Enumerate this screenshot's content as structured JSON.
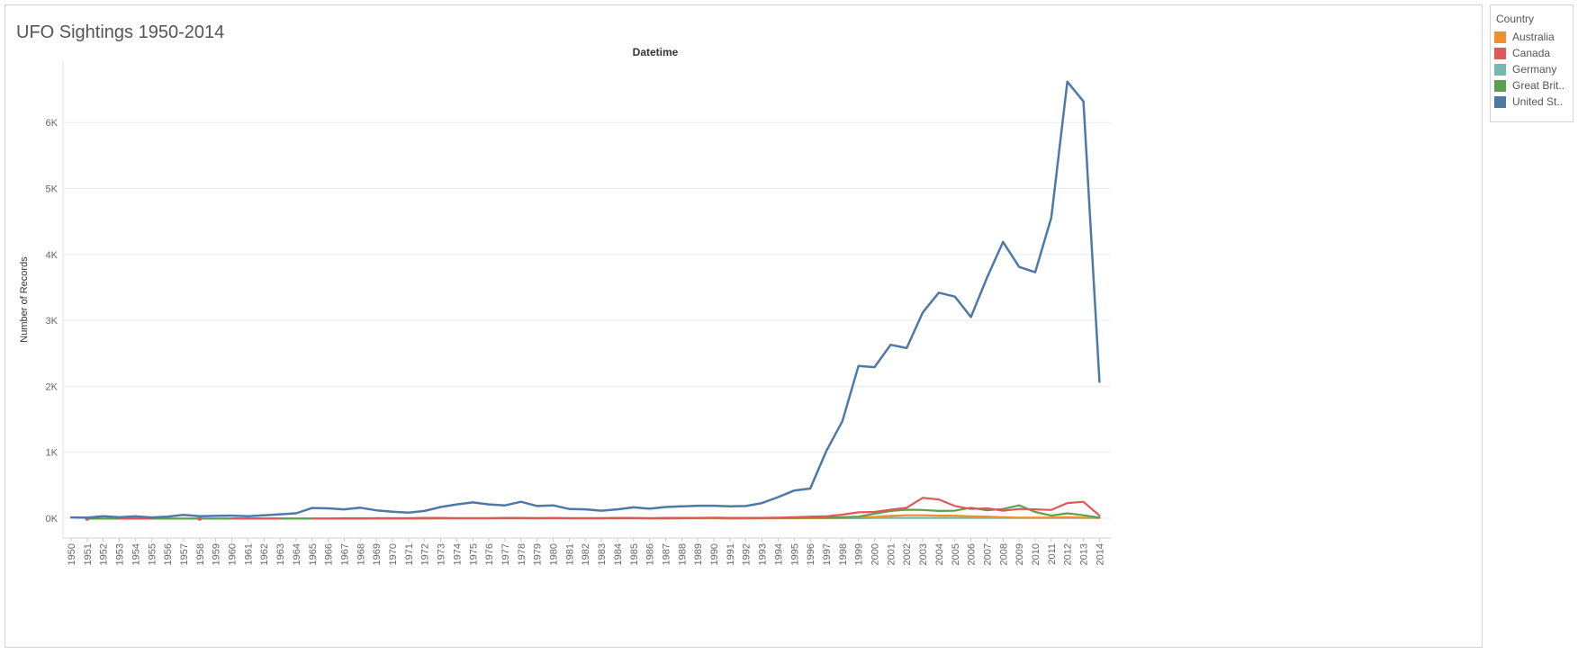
{
  "dashboard": {
    "title": "UFO Sightings 1950-2014"
  },
  "legend": {
    "title": "Country",
    "items": [
      {
        "label": "Australia",
        "color": "#f28e2b"
      },
      {
        "label": "Canada",
        "color": "#e15759"
      },
      {
        "label": "Germany",
        "color": "#76b7b2"
      },
      {
        "label": "Great Brit..",
        "color": "#59a14f"
      },
      {
        "label": "United St..",
        "color": "#4e79a7"
      }
    ]
  },
  "chart_data": {
    "type": "line",
    "title": "Datetime",
    "xlabel": "",
    "ylabel": "Number of Records",
    "ylim": [
      -300,
      7000
    ],
    "y_ticks": [
      {
        "value": 0,
        "label": "0K"
      },
      {
        "value": 1000,
        "label": "1K"
      },
      {
        "value": 2000,
        "label": "2K"
      },
      {
        "value": 3000,
        "label": "3K"
      },
      {
        "value": 4000,
        "label": "4K"
      },
      {
        "value": 5000,
        "label": "5K"
      },
      {
        "value": 6000,
        "label": "6K"
      }
    ],
    "grid": true,
    "legend_position": "right",
    "x": [
      1950,
      1951,
      1952,
      1953,
      1954,
      1955,
      1956,
      1957,
      1958,
      1959,
      1960,
      1961,
      1962,
      1963,
      1964,
      1965,
      1966,
      1967,
      1968,
      1969,
      1970,
      1971,
      1972,
      1973,
      1974,
      1975,
      1976,
      1977,
      1978,
      1979,
      1980,
      1981,
      1982,
      1983,
      1984,
      1985,
      1986,
      1987,
      1988,
      1989,
      1990,
      1991,
      1992,
      1993,
      1994,
      1995,
      1996,
      1997,
      1998,
      1999,
      2000,
      2001,
      2002,
      2003,
      2004,
      2005,
      2006,
      2007,
      2008,
      2009,
      2010,
      2011,
      2012,
      2013,
      2014
    ],
    "series": [
      {
        "name": "United St..",
        "color": "#4e79a7",
        "points": [
          [
            1950,
            12
          ],
          [
            1951,
            8
          ],
          [
            1952,
            30
          ],
          [
            1953,
            15
          ],
          [
            1954,
            28
          ],
          [
            1955,
            12
          ],
          [
            1956,
            25
          ],
          [
            1957,
            50
          ],
          [
            1958,
            30
          ],
          [
            1959,
            35
          ],
          [
            1960,
            40
          ],
          [
            1961,
            30
          ],
          [
            1962,
            45
          ],
          [
            1963,
            60
          ],
          [
            1964,
            75
          ],
          [
            1965,
            155
          ],
          [
            1966,
            150
          ],
          [
            1967,
            135
          ],
          [
            1968,
            160
          ],
          [
            1969,
            120
          ],
          [
            1970,
            100
          ],
          [
            1971,
            85
          ],
          [
            1972,
            110
          ],
          [
            1973,
            170
          ],
          [
            1974,
            210
          ],
          [
            1975,
            240
          ],
          [
            1976,
            210
          ],
          [
            1977,
            195
          ],
          [
            1978,
            250
          ],
          [
            1979,
            185
          ],
          [
            1980,
            195
          ],
          [
            1981,
            140
          ],
          [
            1982,
            135
          ],
          [
            1983,
            115
          ],
          [
            1984,
            135
          ],
          [
            1985,
            165
          ],
          [
            1986,
            145
          ],
          [
            1987,
            170
          ],
          [
            1988,
            180
          ],
          [
            1989,
            190
          ],
          [
            1990,
            190
          ],
          [
            1991,
            180
          ],
          [
            1992,
            185
          ],
          [
            1993,
            230
          ],
          [
            1994,
            320
          ],
          [
            1995,
            420
          ],
          [
            1996,
            450
          ],
          [
            1997,
            1020
          ],
          [
            1998,
            1470
          ],
          [
            1999,
            2310
          ],
          [
            2000,
            2290
          ],
          [
            2001,
            2630
          ],
          [
            2002,
            2580
          ],
          [
            2003,
            3120
          ],
          [
            2004,
            3420
          ],
          [
            2005,
            3360
          ],
          [
            2006,
            3050
          ],
          [
            2007,
            3650
          ],
          [
            2008,
            4190
          ],
          [
            2009,
            3810
          ],
          [
            2010,
            3730
          ],
          [
            2011,
            4560
          ],
          [
            2012,
            6620
          ],
          [
            2013,
            6320
          ],
          [
            2014,
            2070
          ]
        ]
      },
      {
        "name": "Canada",
        "color": "#e15759",
        "points": [
          [
            1951,
            -5
          ],
          [
            1953,
            -5
          ],
          [
            1954,
            -5
          ],
          [
            1955,
            -5
          ],
          [
            1958,
            -5
          ],
          [
            1960,
            -5
          ],
          [
            1961,
            -5
          ],
          [
            1962,
            -5
          ],
          [
            1963,
            -5
          ],
          [
            1965,
            -5
          ],
          [
            1966,
            -5
          ],
          [
            1967,
            -5
          ],
          [
            1968,
            -5
          ],
          [
            1969,
            0
          ],
          [
            1970,
            0
          ],
          [
            1971,
            0
          ],
          [
            1972,
            5
          ],
          [
            1973,
            5
          ],
          [
            1974,
            0
          ],
          [
            1975,
            0
          ],
          [
            1976,
            0
          ],
          [
            1977,
            5
          ],
          [
            1978,
            5
          ],
          [
            1979,
            0
          ],
          [
            1980,
            5
          ],
          [
            1981,
            0
          ],
          [
            1982,
            0
          ],
          [
            1983,
            0
          ],
          [
            1984,
            5
          ],
          [
            1985,
            5
          ],
          [
            1986,
            0
          ],
          [
            1987,
            5
          ],
          [
            1988,
            5
          ],
          [
            1989,
            5
          ],
          [
            1990,
            10
          ],
          [
            1991,
            5
          ],
          [
            1992,
            5
          ],
          [
            1993,
            5
          ],
          [
            1994,
            10
          ],
          [
            1995,
            15
          ],
          [
            1996,
            25
          ],
          [
            1997,
            30
          ],
          [
            1998,
            55
          ],
          [
            1999,
            90
          ],
          [
            2000,
            95
          ],
          [
            2001,
            130
          ],
          [
            2002,
            160
          ],
          [
            2003,
            310
          ],
          [
            2004,
            285
          ],
          [
            2005,
            185
          ],
          [
            2006,
            140
          ],
          [
            2007,
            150
          ],
          [
            2008,
            115
          ],
          [
            2009,
            140
          ],
          [
            2010,
            135
          ],
          [
            2011,
            125
          ],
          [
            2012,
            230
          ],
          [
            2013,
            250
          ],
          [
            2014,
            40
          ]
        ]
      },
      {
        "name": "Great Brit..",
        "color": "#59a14f",
        "points": [
          [
            1951,
            -5
          ],
          [
            1952,
            -5
          ],
          [
            1960,
            -5
          ],
          [
            1966,
            -5
          ],
          [
            1967,
            0
          ],
          [
            1968,
            0
          ],
          [
            1970,
            0
          ],
          [
            1974,
            0
          ],
          [
            1976,
            0
          ],
          [
            1980,
            0
          ],
          [
            1984,
            0
          ],
          [
            1988,
            0
          ],
          [
            1990,
            5
          ],
          [
            1992,
            5
          ],
          [
            1994,
            5
          ],
          [
            1996,
            10
          ],
          [
            1997,
            10
          ],
          [
            1998,
            15
          ],
          [
            1999,
            25
          ],
          [
            2000,
            70
          ],
          [
            2001,
            110
          ],
          [
            2002,
            130
          ],
          [
            2003,
            125
          ],
          [
            2004,
            110
          ],
          [
            2005,
            115
          ],
          [
            2006,
            160
          ],
          [
            2007,
            120
          ],
          [
            2008,
            140
          ],
          [
            2009,
            195
          ],
          [
            2010,
            95
          ],
          [
            2011,
            40
          ],
          [
            2012,
            75
          ],
          [
            2013,
            45
          ],
          [
            2014,
            10
          ]
        ]
      },
      {
        "name": "Australia",
        "color": "#f28e2b",
        "points": [
          [
            1960,
            -5
          ],
          [
            1962,
            -5
          ],
          [
            1968,
            -5
          ],
          [
            1970,
            -5
          ],
          [
            1972,
            -5
          ],
          [
            1974,
            0
          ],
          [
            1977,
            0
          ],
          [
            1980,
            0
          ],
          [
            1983,
            0
          ],
          [
            1985,
            0
          ],
          [
            1987,
            -5
          ],
          [
            1988,
            0
          ],
          [
            1990,
            0
          ],
          [
            1991,
            -5
          ],
          [
            1993,
            0
          ],
          [
            1995,
            0
          ],
          [
            1997,
            5
          ],
          [
            1998,
            10
          ],
          [
            1999,
            15
          ],
          [
            2000,
            20
          ],
          [
            2001,
            35
          ],
          [
            2002,
            45
          ],
          [
            2003,
            45
          ],
          [
            2004,
            40
          ],
          [
            2005,
            40
          ],
          [
            2006,
            30
          ],
          [
            2007,
            25
          ],
          [
            2008,
            15
          ],
          [
            2009,
            10
          ],
          [
            2010,
            10
          ],
          [
            2011,
            10
          ],
          [
            2012,
            15
          ],
          [
            2013,
            10
          ],
          [
            2014,
            5
          ]
        ]
      },
      {
        "name": "Germany",
        "color": "#76b7b2",
        "points": [
          [
            1990,
            0
          ],
          [
            1995,
            0
          ],
          [
            1999,
            0
          ],
          [
            2000,
            5
          ],
          [
            2002,
            5
          ],
          [
            2005,
            5
          ],
          [
            2008,
            5
          ],
          [
            2010,
            5
          ],
          [
            2012,
            5
          ],
          [
            2014,
            5
          ]
        ]
      }
    ]
  }
}
